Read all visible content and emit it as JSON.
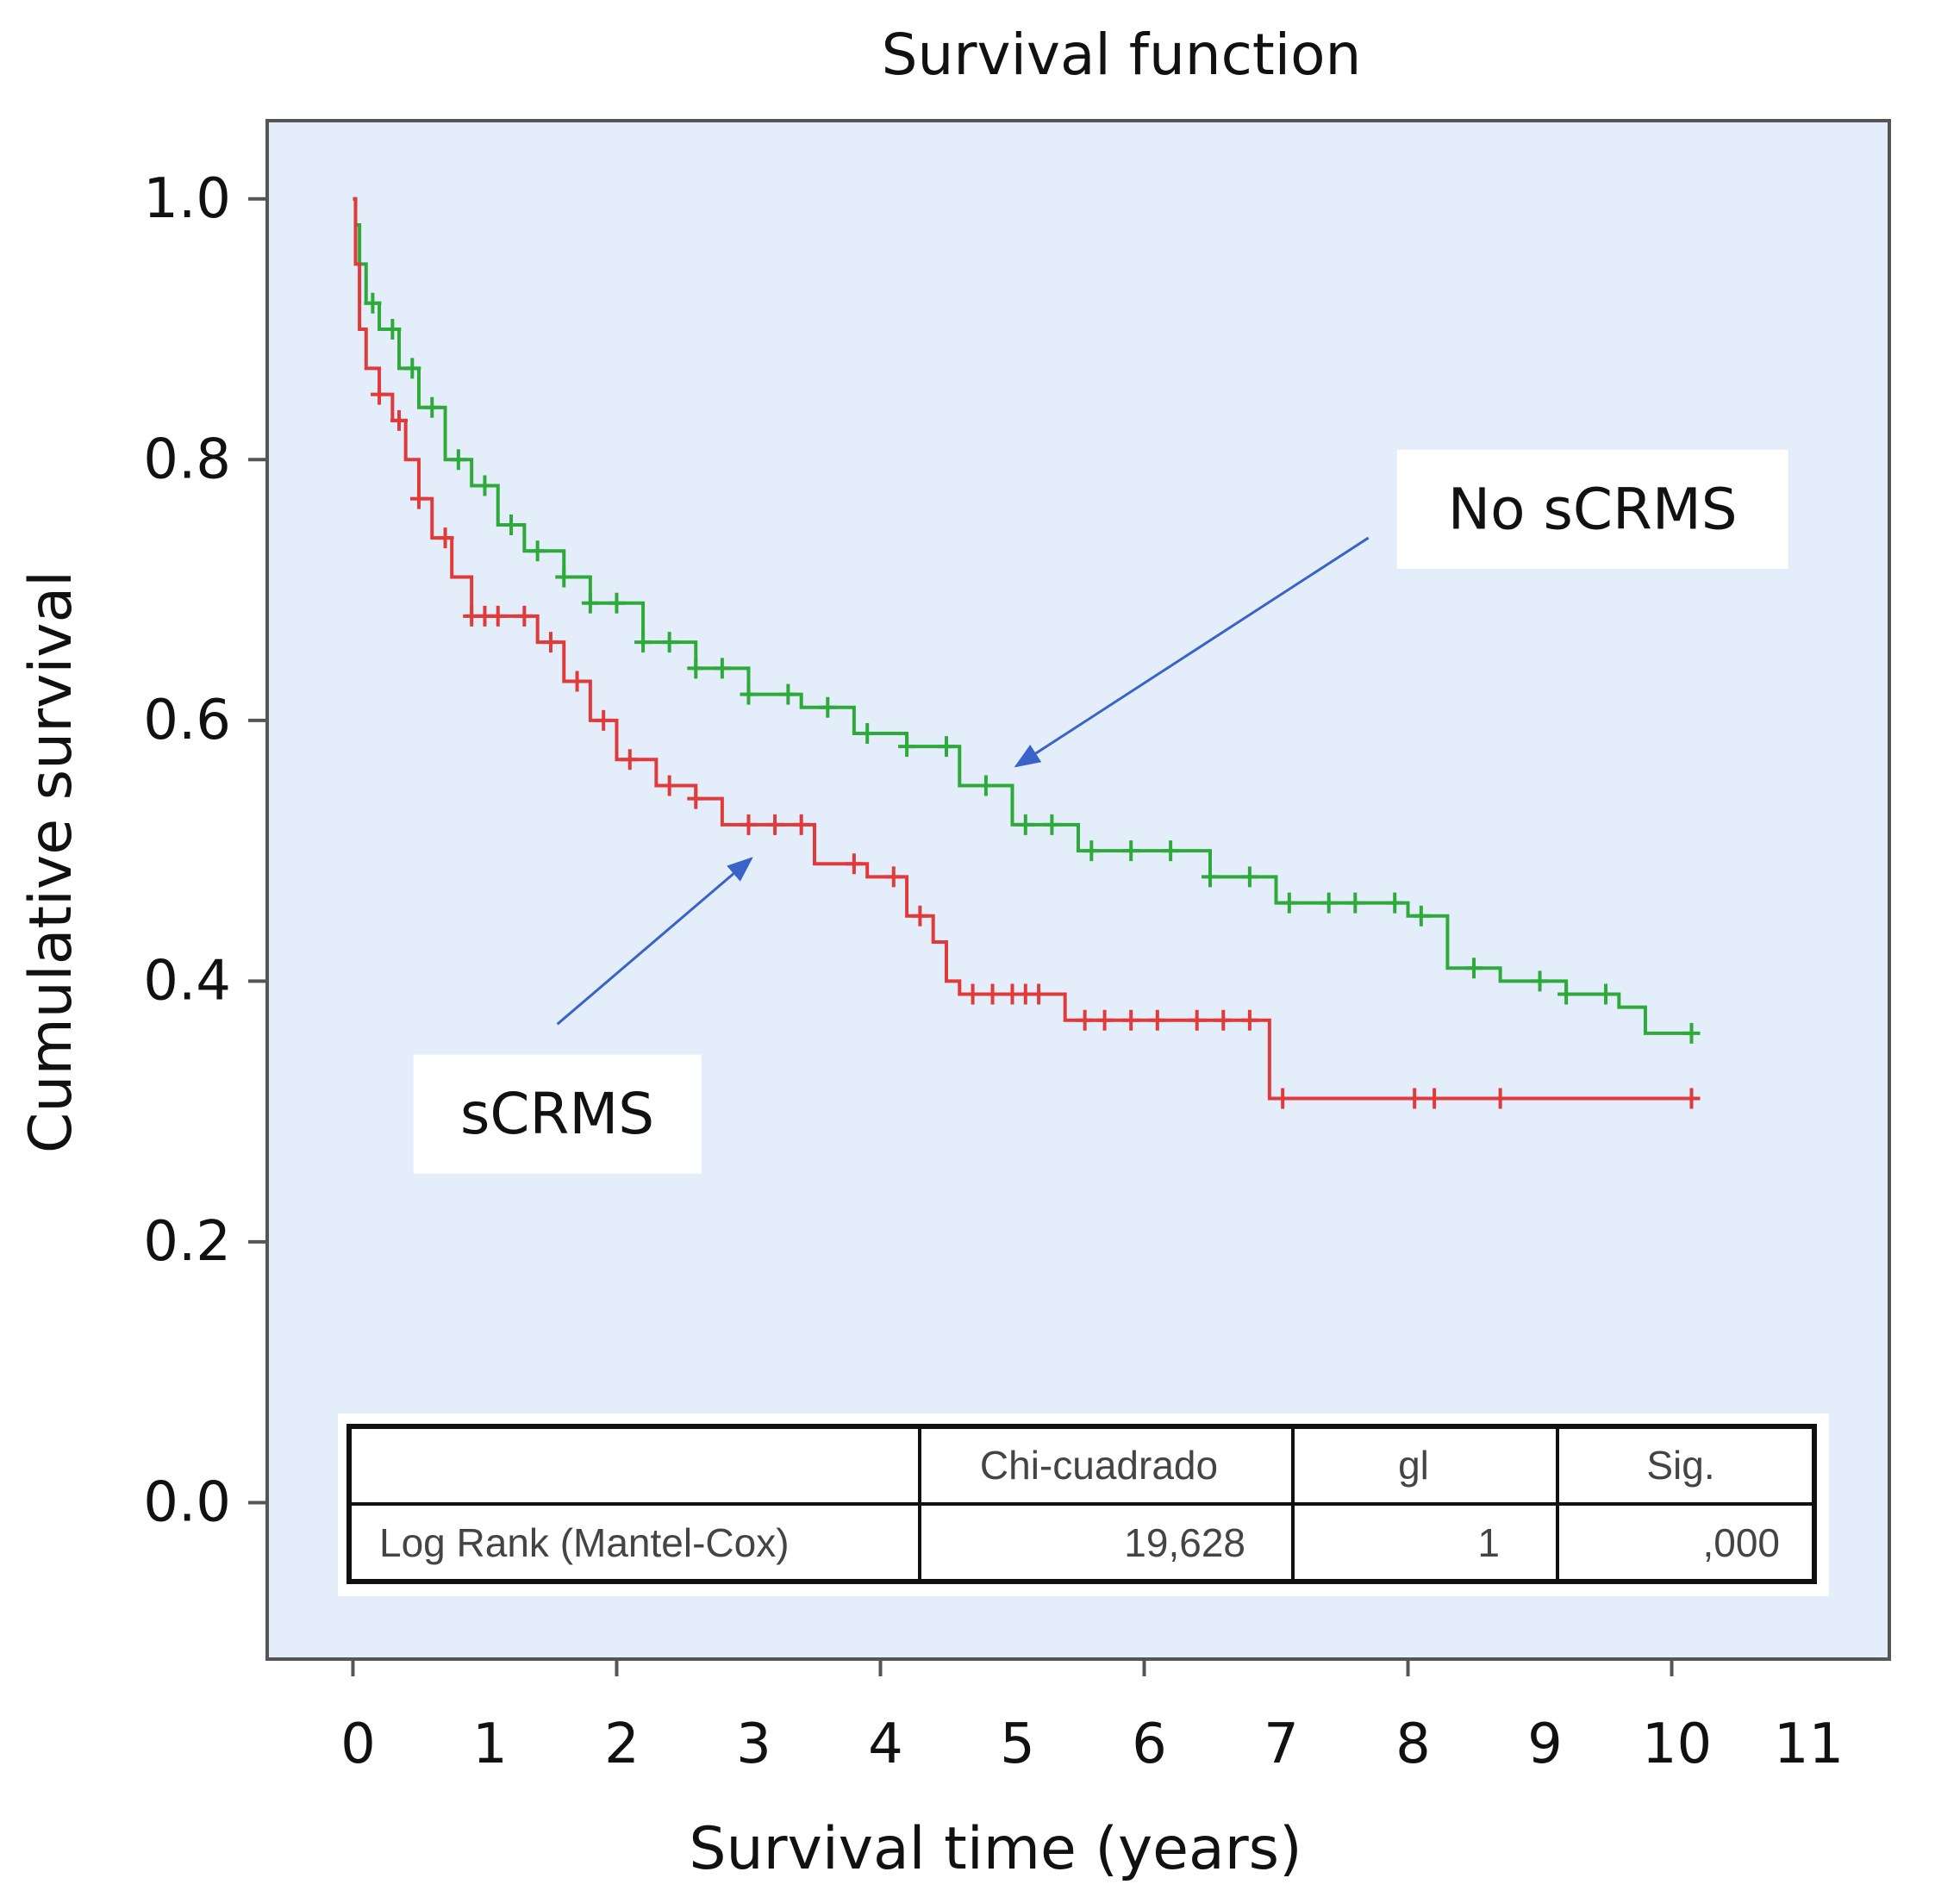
{
  "chart_data": {
    "type": "line",
    "step": true,
    "title": "Survival function",
    "xlabel": "Survival time (years)",
    "ylabel": "Cumulative survival",
    "xlim": [
      -0.65,
      11.65
    ],
    "ylim": [
      -0.12,
      1.06
    ],
    "xticks": [
      0,
      1,
      2,
      3,
      4,
      5,
      6,
      7,
      8,
      9,
      10,
      11
    ],
    "xtick_labels": [
      "0",
      "1",
      "2",
      "3",
      "4",
      "5",
      "6",
      "7",
      "8",
      "9",
      "10",
      "11"
    ],
    "yticks": [
      0.0,
      0.2,
      0.4,
      0.6,
      0.8,
      1.0
    ],
    "ytick_labels": [
      "0.0",
      "0.2",
      "0.4",
      "0.6",
      "0.8",
      "1.0"
    ],
    "grid": false,
    "colors": {
      "plot_bg": "#e3eefa",
      "frame": "#555555",
      "arrow": "#3a63c9"
    },
    "series": [
      {
        "name": "No sCRMS",
        "color": "#2eaa3a",
        "points": [
          [
            0,
            1.0
          ],
          [
            0.02,
            0.98
          ],
          [
            0.05,
            0.95
          ],
          [
            0.1,
            0.92
          ],
          [
            0.2,
            0.9
          ],
          [
            0.35,
            0.87
          ],
          [
            0.5,
            0.84
          ],
          [
            0.7,
            0.8
          ],
          [
            0.9,
            0.78
          ],
          [
            1.1,
            0.75
          ],
          [
            1.3,
            0.73
          ],
          [
            1.6,
            0.71
          ],
          [
            1.8,
            0.69
          ],
          [
            2.2,
            0.66
          ],
          [
            2.6,
            0.64
          ],
          [
            3.0,
            0.62
          ],
          [
            3.4,
            0.61
          ],
          [
            3.8,
            0.59
          ],
          [
            4.2,
            0.58
          ],
          [
            4.6,
            0.55
          ],
          [
            5.0,
            0.52
          ],
          [
            5.5,
            0.5
          ],
          [
            6.0,
            0.5
          ],
          [
            6.5,
            0.48
          ],
          [
            7.0,
            0.46
          ],
          [
            7.3,
            0.46
          ],
          [
            8.0,
            0.45
          ],
          [
            8.3,
            0.41
          ],
          [
            8.7,
            0.4
          ],
          [
            9.2,
            0.39
          ],
          [
            9.6,
            0.38
          ],
          [
            9.8,
            0.36
          ],
          [
            10.15,
            0.36
          ]
        ],
        "censor_x": [
          0.15,
          0.3,
          0.45,
          0.6,
          0.8,
          1.0,
          1.2,
          1.4,
          1.6,
          1.8,
          2.0,
          2.2,
          2.4,
          2.6,
          2.8,
          3.0,
          3.3,
          3.6,
          3.9,
          4.2,
          4.5,
          4.8,
          5.1,
          5.3,
          5.6,
          5.9,
          6.2,
          6.5,
          6.8,
          7.1,
          7.4,
          7.6,
          7.9,
          8.1,
          8.5,
          9.0,
          9.2,
          9.5,
          10.15
        ]
      },
      {
        "name": "sCRMS",
        "color": "#e03a3a",
        "points": [
          [
            0,
            1.0
          ],
          [
            0.02,
            0.95
          ],
          [
            0.05,
            0.9
          ],
          [
            0.1,
            0.87
          ],
          [
            0.2,
            0.85
          ],
          [
            0.3,
            0.83
          ],
          [
            0.4,
            0.8
          ],
          [
            0.5,
            0.77
          ],
          [
            0.6,
            0.74
          ],
          [
            0.75,
            0.71
          ],
          [
            0.9,
            0.68
          ],
          [
            1.2,
            0.68
          ],
          [
            1.4,
            0.66
          ],
          [
            1.6,
            0.63
          ],
          [
            1.8,
            0.6
          ],
          [
            2.0,
            0.57
          ],
          [
            2.3,
            0.55
          ],
          [
            2.6,
            0.54
          ],
          [
            2.8,
            0.52
          ],
          [
            3.3,
            0.52
          ],
          [
            3.5,
            0.49
          ],
          [
            3.9,
            0.48
          ],
          [
            4.2,
            0.45
          ],
          [
            4.4,
            0.43
          ],
          [
            4.5,
            0.4
          ],
          [
            4.6,
            0.39
          ],
          [
            5.3,
            0.39
          ],
          [
            5.4,
            0.37
          ],
          [
            6.9,
            0.37
          ],
          [
            6.95,
            0.31
          ],
          [
            10.15,
            0.31
          ]
        ],
        "censor_x": [
          0.2,
          0.35,
          0.5,
          0.7,
          0.9,
          1.0,
          1.1,
          1.3,
          1.5,
          1.7,
          1.9,
          2.1,
          2.4,
          2.6,
          3.0,
          3.2,
          3.4,
          3.8,
          4.1,
          4.3,
          4.7,
          4.85,
          5.0,
          5.1,
          5.2,
          5.55,
          5.7,
          5.9,
          6.1,
          6.4,
          6.6,
          6.8,
          7.05,
          8.05,
          8.2,
          8.7,
          10.15
        ]
      }
    ],
    "annotations": [
      {
        "text": "No sCRMS",
        "label_box": [
          9.4,
          0.762
        ],
        "arrow_from": [
          7.7,
          0.74
        ],
        "arrow_to": [
          5.03,
          0.565
        ]
      },
      {
        "text": "sCRMS",
        "label_box": [
          1.55,
          0.298
        ],
        "arrow_from": [
          1.55,
          0.367
        ],
        "arrow_to": [
          3.02,
          0.494
        ]
      }
    ],
    "table": {
      "headers": [
        "",
        "Chi-cuadrado",
        "gl",
        "Sig."
      ],
      "rows": [
        [
          "Log Rank (Mantel-Cox)",
          "19,628",
          "1",
          ",000"
        ]
      ]
    }
  }
}
